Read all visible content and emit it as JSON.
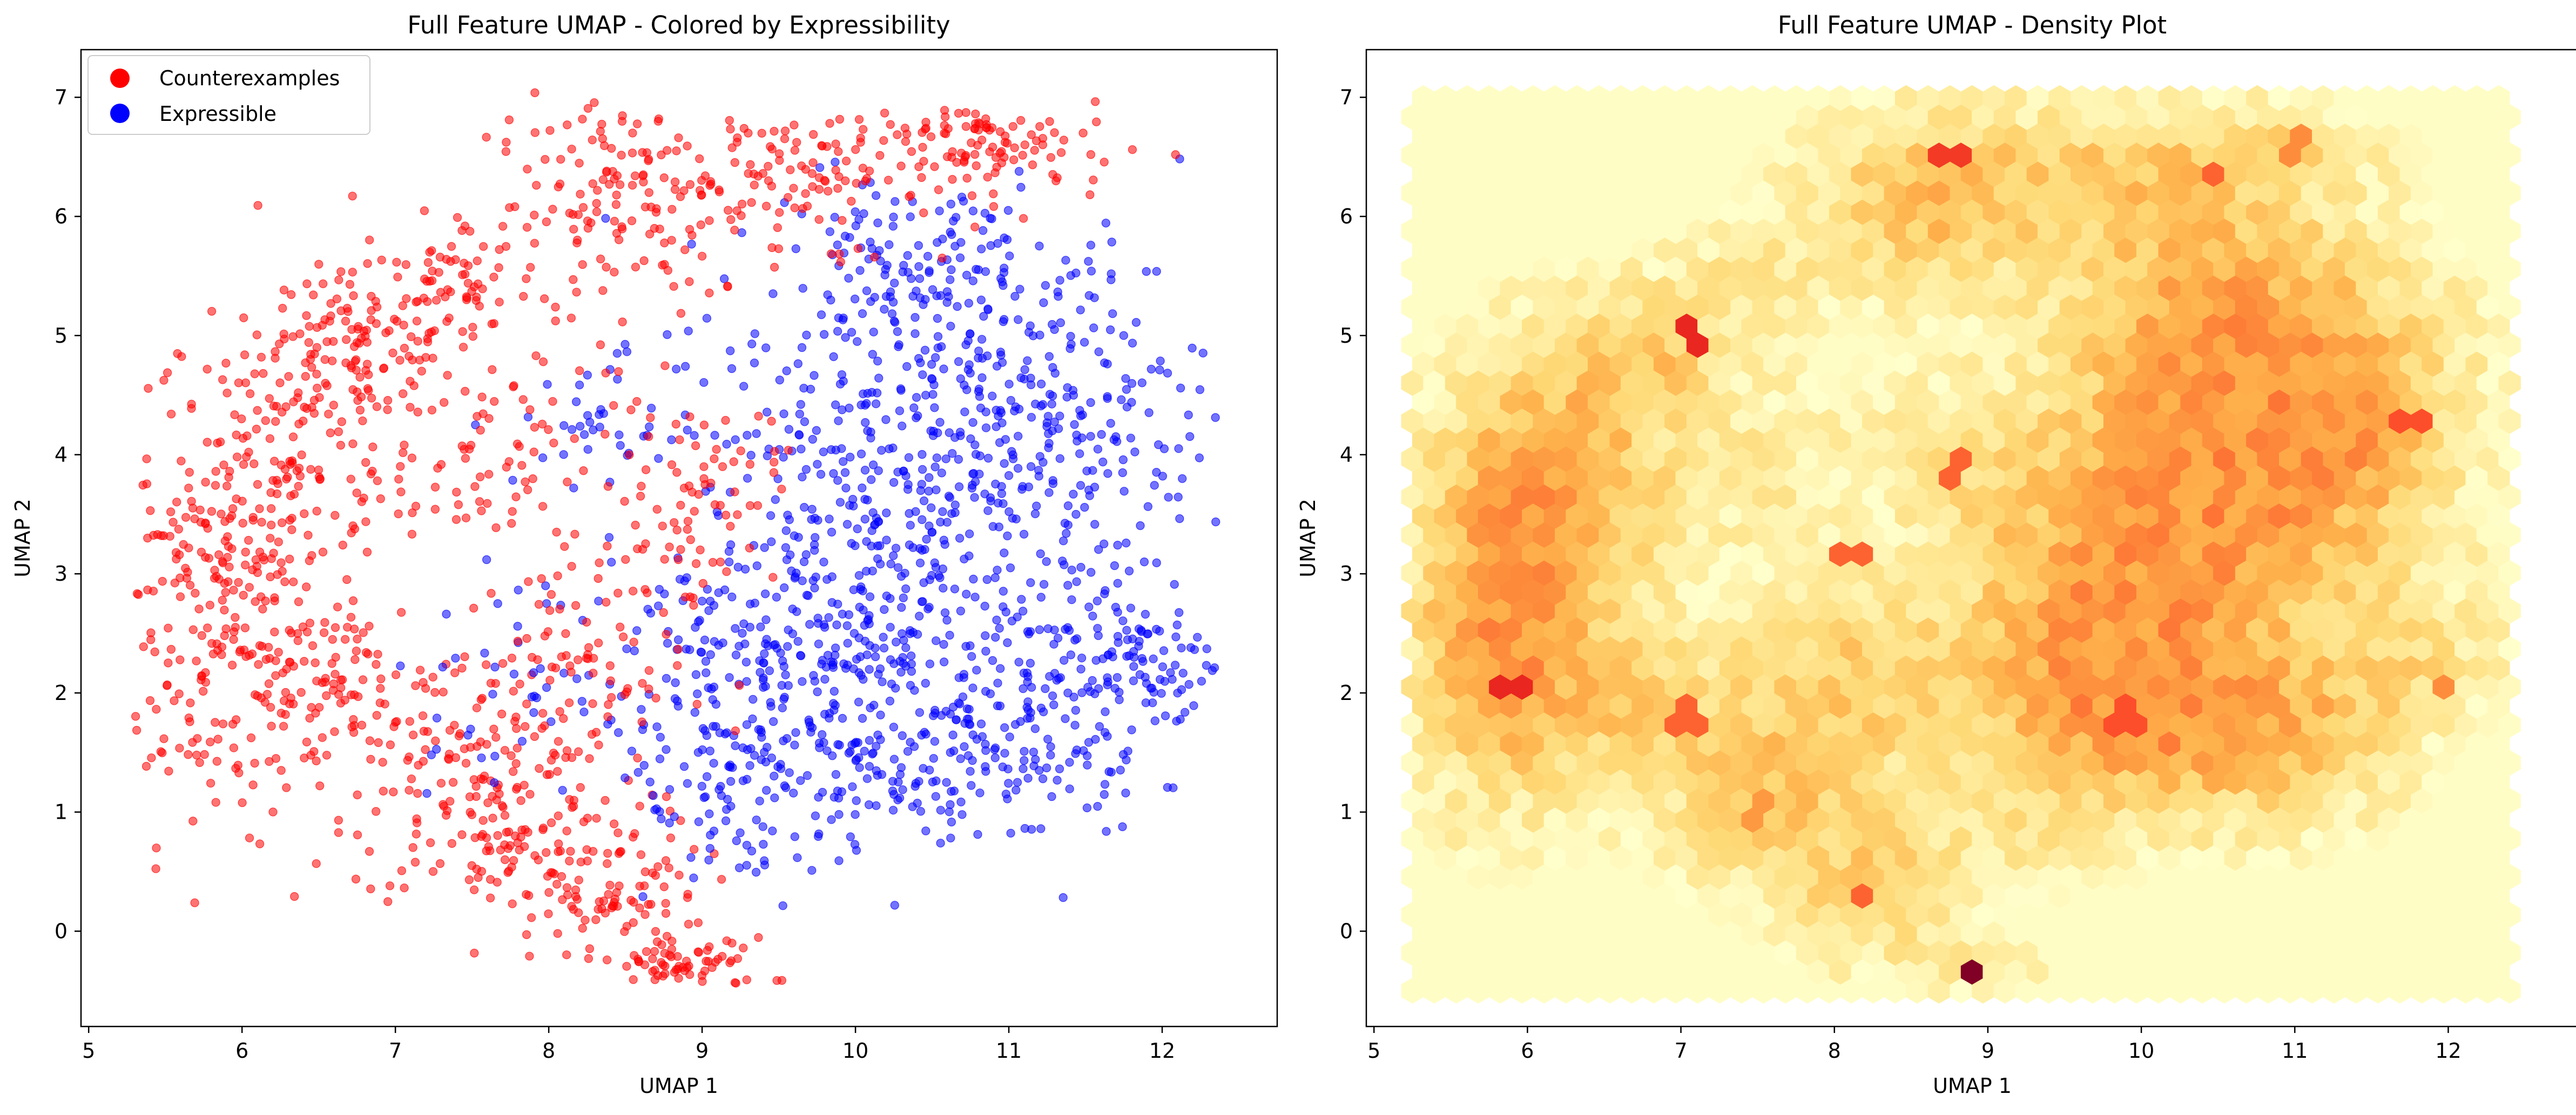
{
  "chart_data": [
    {
      "type": "scatter",
      "title": "Full Feature UMAP - Colored by Expressibility",
      "xlabel": "UMAP 1",
      "ylabel": "UMAP 2",
      "xlim": [
        4.95,
        12.75
      ],
      "ylim": [
        -0.8,
        7.4
      ],
      "xticks": [
        5,
        6,
        7,
        8,
        9,
        10,
        11,
        12
      ],
      "yticks": [
        0,
        1,
        2,
        3,
        4,
        5,
        6,
        7
      ],
      "legend_position": "upper-left",
      "series": [
        {
          "name": "Counterexamples",
          "color": "#ff0000",
          "clusters": [
            {
              "x": 5.8,
              "y": 2.6,
              "sx": 0.35,
              "sy": 0.9,
              "w": 10
            },
            {
              "x": 6.3,
              "y": 3.8,
              "sx": 0.45,
              "sy": 0.7,
              "w": 9
            },
            {
              "x": 6.8,
              "y": 4.9,
              "sx": 0.35,
              "sy": 0.3,
              "w": 6
            },
            {
              "x": 6.6,
              "y": 1.9,
              "sx": 0.45,
              "sy": 0.4,
              "w": 6
            },
            {
              "x": 7.6,
              "y": 1.1,
              "sx": 0.45,
              "sy": 0.45,
              "w": 7
            },
            {
              "x": 8.3,
              "y": 0.3,
              "sx": 0.35,
              "sy": 0.35,
              "w": 6
            },
            {
              "x": 8.95,
              "y": -0.3,
              "sx": 0.25,
              "sy": 0.12,
              "w": 3
            },
            {
              "x": 7.4,
              "y": 5.5,
              "sx": 0.3,
              "sy": 0.25,
              "w": 3
            },
            {
              "x": 8.6,
              "y": 6.1,
              "sx": 0.5,
              "sy": 0.45,
              "w": 8
            },
            {
              "x": 9.9,
              "y": 6.4,
              "sx": 0.6,
              "sy": 0.3,
              "w": 6
            },
            {
              "x": 10.9,
              "y": 6.6,
              "sx": 0.4,
              "sy": 0.2,
              "w": 4
            },
            {
              "x": 8.9,
              "y": 3.7,
              "sx": 0.3,
              "sy": 0.4,
              "w": 4
            },
            {
              "x": 8.1,
              "y": 2.2,
              "sx": 0.4,
              "sy": 0.5,
              "w": 5
            },
            {
              "x": 7.6,
              "y": 3.9,
              "sx": 0.3,
              "sy": 0.4,
              "w": 3
            }
          ]
        },
        {
          "name": "Expressible",
          "color": "#0000ff",
          "clusters": [
            {
              "x": 10.4,
              "y": 4.3,
              "sx": 0.6,
              "sy": 0.8,
              "w": 12
            },
            {
              "x": 11.4,
              "y": 4.3,
              "sx": 0.45,
              "sy": 0.8,
              "w": 8
            },
            {
              "x": 10.0,
              "y": 2.9,
              "sx": 0.55,
              "sy": 0.6,
              "w": 9
            },
            {
              "x": 10.2,
              "y": 1.6,
              "sx": 0.6,
              "sy": 0.45,
              "w": 9
            },
            {
              "x": 11.1,
              "y": 1.8,
              "sx": 0.4,
              "sy": 0.5,
              "w": 5
            },
            {
              "x": 11.85,
              "y": 2.3,
              "sx": 0.3,
              "sy": 0.35,
              "w": 4
            },
            {
              "x": 9.3,
              "y": 2.2,
              "sx": 0.45,
              "sy": 0.5,
              "w": 5
            },
            {
              "x": 9.2,
              "y": 1.0,
              "sx": 0.35,
              "sy": 0.4,
              "w": 3
            },
            {
              "x": 10.4,
              "y": 5.6,
              "sx": 0.5,
              "sy": 0.4,
              "w": 5
            },
            {
              "x": 7.8,
              "y": 2.1,
              "sx": 0.4,
              "sy": 0.4,
              "w": 2
            },
            {
              "x": 8.5,
              "y": 4.3,
              "sx": 0.35,
              "sy": 0.3,
              "w": 2
            }
          ]
        }
      ]
    },
    {
      "type": "heatmap",
      "title": "Full Feature UMAP - Density Plot",
      "xlabel": "UMAP 1",
      "ylabel": "UMAP 2",
      "xlim": [
        4.95,
        12.85
      ],
      "ylim": [
        -0.8,
        7.4
      ],
      "xticks": [
        5,
        6,
        7,
        8,
        9,
        10,
        11,
        12
      ],
      "yticks": [
        0,
        1,
        2,
        3,
        4,
        5,
        6,
        7
      ],
      "grid_extent": {
        "x": [
          5.25,
          12.4
        ],
        "y": [
          -0.5,
          7.05
        ]
      },
      "gridsize": 50,
      "colormap": "YlOrRd",
      "hotspots": [
        {
          "x": 8.9,
          "y": -0.3,
          "v": 1.0
        },
        {
          "x": 5.9,
          "y": 2.1,
          "v": 0.85
        },
        {
          "x": 7.05,
          "y": 5.0,
          "v": 0.85
        },
        {
          "x": 8.75,
          "y": 6.5,
          "v": 0.8
        },
        {
          "x": 11.75,
          "y": 4.3,
          "v": 0.75
        },
        {
          "x": 9.9,
          "y": 1.8,
          "v": 0.75
        },
        {
          "x": 8.15,
          "y": 0.3,
          "v": 0.7
        },
        {
          "x": 8.1,
          "y": 3.15,
          "v": 0.7
        },
        {
          "x": 8.8,
          "y": 3.9,
          "v": 0.7
        },
        {
          "x": 10.45,
          "y": 6.4,
          "v": 0.7
        },
        {
          "x": 7.05,
          "y": 1.8,
          "v": 0.7
        },
        {
          "x": 12.0,
          "y": 2.1,
          "v": 0.6
        },
        {
          "x": 10.6,
          "y": 2.1,
          "v": 0.6
        },
        {
          "x": 11.0,
          "y": 6.6,
          "v": 0.6
        },
        {
          "x": 7.5,
          "y": 1.0,
          "v": 0.55
        }
      ]
    }
  ]
}
